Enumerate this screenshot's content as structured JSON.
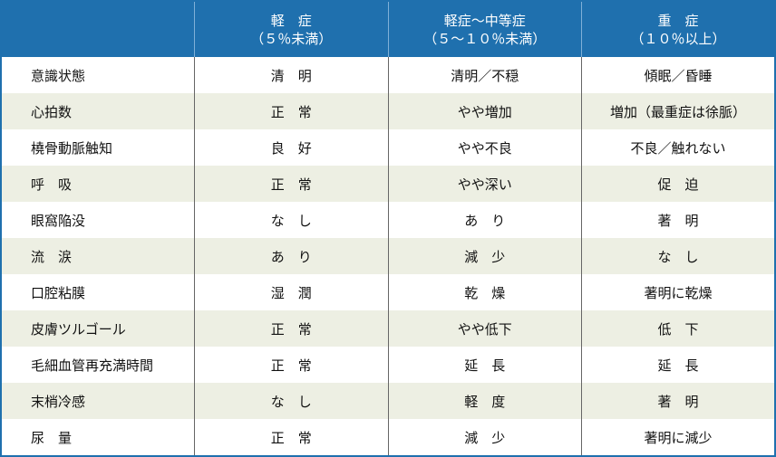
{
  "header": {
    "columns": [
      {
        "title": "",
        "sub": ""
      },
      {
        "title": "軽　症",
        "sub": "（５％未満）"
      },
      {
        "title": "軽症～中等症",
        "sub": "（５～１０％未満）"
      },
      {
        "title": "重　症",
        "sub": "（１０％以上）"
      }
    ]
  },
  "rows": [
    [
      "意識状態",
      "清　明",
      "清明／不穏",
      "傾眠／昏睡"
    ],
    [
      "心拍数",
      "正　常",
      "やや増加",
      "増加（最重症は徐脈）"
    ],
    [
      "橈骨動脈触知",
      "良　好",
      "やや不良",
      "不良／触れない"
    ],
    [
      "呼　吸",
      "正　常",
      "やや深い",
      "促　迫"
    ],
    [
      "眼窩陥没",
      "な　し",
      "あ　り",
      "著　明"
    ],
    [
      "流　涙",
      "あ　り",
      "減　少",
      "な　し"
    ],
    [
      "口腔粘膜",
      "湿　潤",
      "乾　燥",
      "著明に乾燥"
    ],
    [
      "皮膚ツルゴール",
      "正　常",
      "やや低下",
      "低　下"
    ],
    [
      "毛細血管再充満時間",
      "正　常",
      "延　長",
      "延　長"
    ],
    [
      "末梢冷感",
      "な　し",
      "軽　度",
      "著　明"
    ],
    [
      "尿　量",
      "正　常",
      "減　少",
      "著明に減少"
    ]
  ],
  "colors": {
    "header": "#1f70ae",
    "alt_row": "#edefe3"
  }
}
